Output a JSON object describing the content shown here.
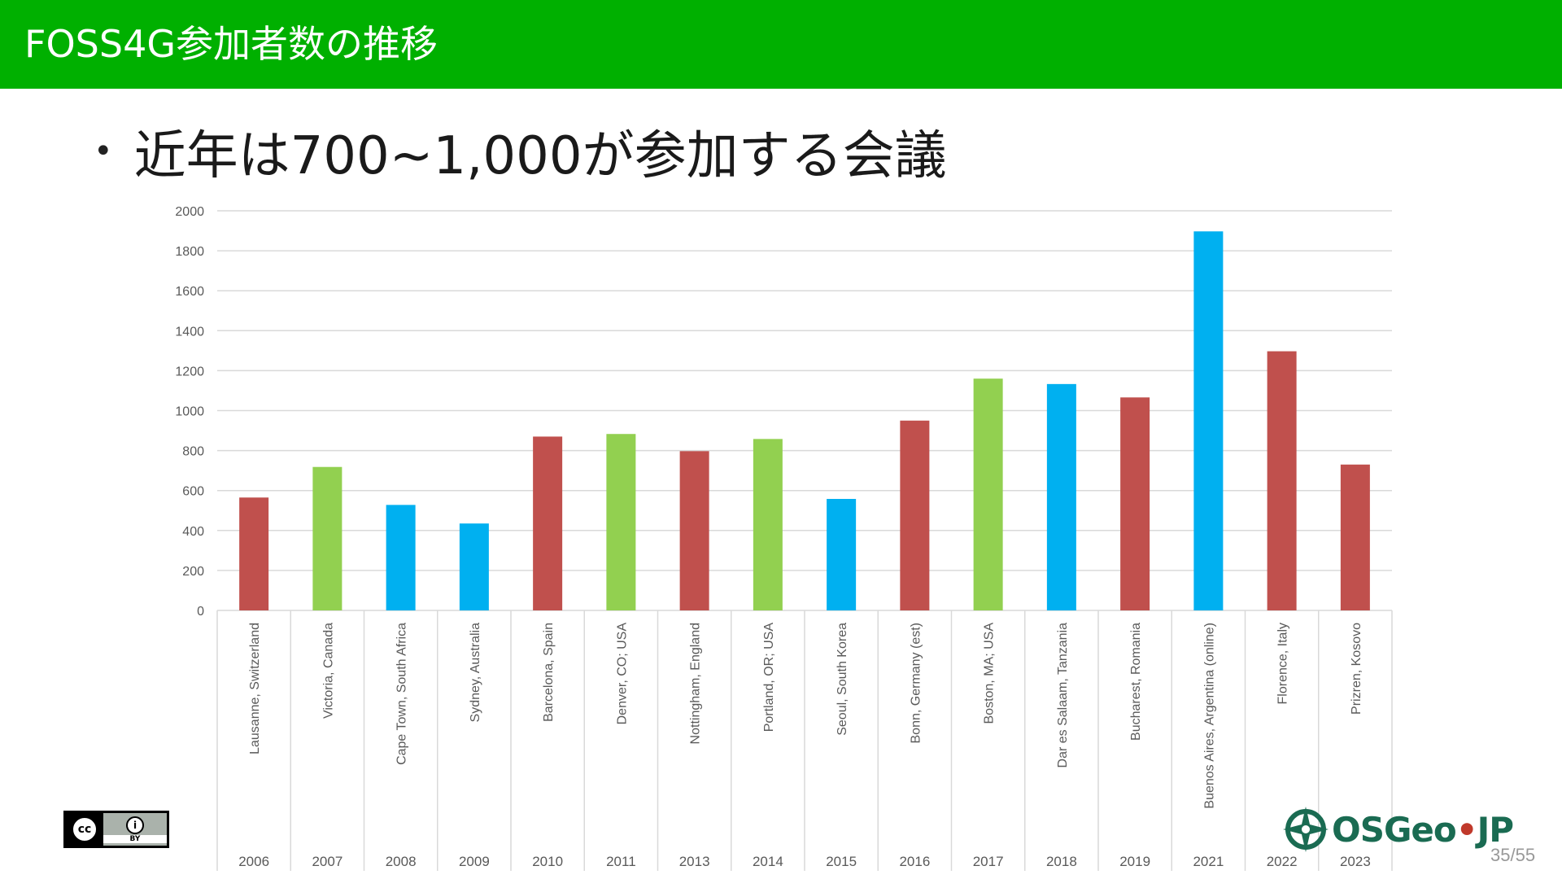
{
  "header": {
    "title": "FOSS4G参加者数の推移"
  },
  "bullet": {
    "text": "近年は700~1,000が参加する会議"
  },
  "colors": {
    "header_bg": "#00b000",
    "red": "#c0504d",
    "green": "#92d050",
    "blue": "#00b0f0",
    "grid": "#d9d9d9"
  },
  "chart_data": {
    "type": "bar",
    "title": "",
    "xlabel": "",
    "ylabel": "",
    "ylim": [
      0,
      2000
    ],
    "yticks": [
      0,
      200,
      400,
      600,
      800,
      1000,
      1200,
      1400,
      1600,
      1800,
      2000
    ],
    "grid": true,
    "categories": [
      {
        "location": "Lausanne, Switzerland",
        "year": "2006",
        "value": 565,
        "color": "red"
      },
      {
        "location": "Victoria, Canada",
        "year": "2007",
        "value": 718,
        "color": "green"
      },
      {
        "location": "Cape Town, South Africa",
        "year": "2008",
        "value": 528,
        "color": "blue"
      },
      {
        "location": "Sydney, Australia",
        "year": "2009",
        "value": 435,
        "color": "blue"
      },
      {
        "location": "Barcelona, Spain",
        "year": "2010",
        "value": 870,
        "color": "red"
      },
      {
        "location": "Denver, CO; USA",
        "year": "2011",
        "value": 883,
        "color": "green"
      },
      {
        "location": "Nottingham, England",
        "year": "2013",
        "value": 797,
        "color": "red"
      },
      {
        "location": "Portland, OR; USA",
        "year": "2014",
        "value": 858,
        "color": "green"
      },
      {
        "location": "Seoul, South Korea",
        "year": "2015",
        "value": 558,
        "color": "blue"
      },
      {
        "location": "Bonn, Germany (est)",
        "year": "2016",
        "value": 950,
        "color": "red"
      },
      {
        "location": "Boston, MA; USA",
        "year": "2017",
        "value": 1160,
        "color": "green"
      },
      {
        "location": "Dar es Salaam, Tanzania",
        "year": "2018",
        "value": 1133,
        "color": "blue"
      },
      {
        "location": "Bucharest, Romania",
        "year": "2019",
        "value": 1066,
        "color": "red"
      },
      {
        "location": "Buenos Aires, Argentina (online)",
        "year": "2021",
        "value": 1897,
        "color": "blue"
      },
      {
        "location": "Florence, Italy",
        "year": "2022",
        "value": 1297,
        "color": "red"
      },
      {
        "location": "Prizren, Kosovo",
        "year": "2023",
        "value": 730,
        "color": "red"
      }
    ]
  },
  "license": {
    "cc_label": "cc",
    "person_glyph": "i",
    "by_label": "BY"
  },
  "logo": {
    "text_main": "OSGeo",
    "text_dot": "•",
    "text_end": "JP"
  },
  "page": {
    "number": "35/55"
  }
}
